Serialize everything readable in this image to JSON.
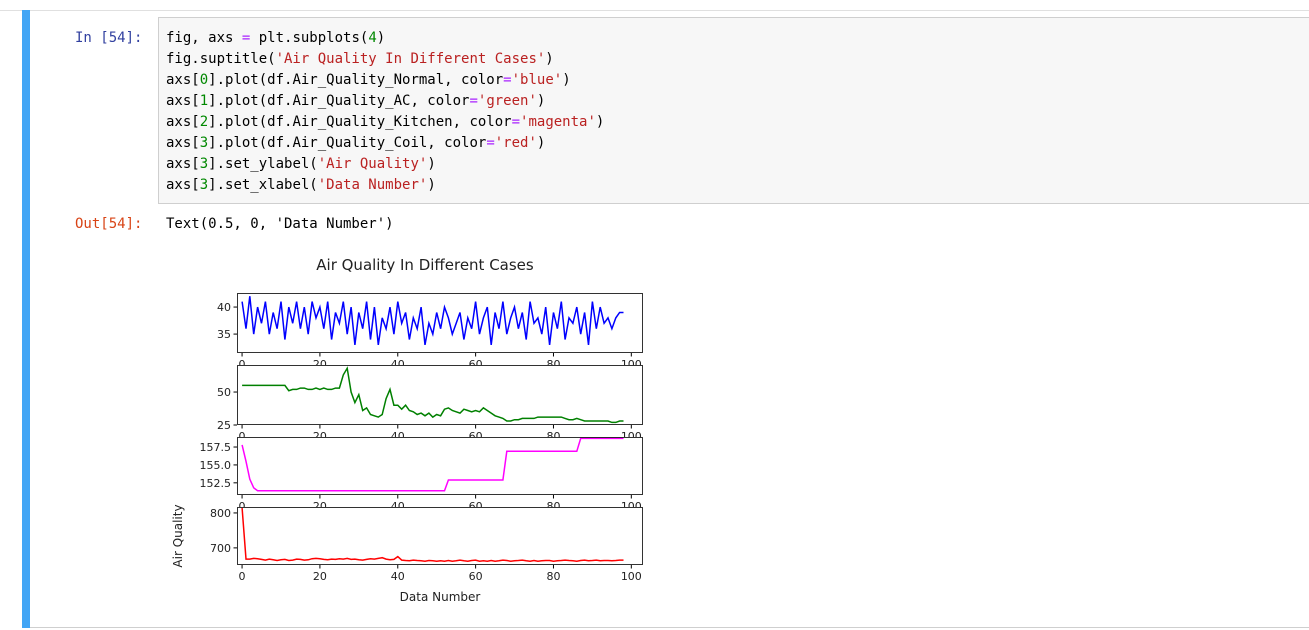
{
  "input": {
    "prompt": "In [54]:",
    "code": [
      "fig, axs = plt.subplots(4)",
      "fig.suptitle('Air Quality In Different Cases')",
      "axs[0].plot(df.Air_Quality_Normal, color='blue')",
      "axs[1].plot(df.Air_Quality_AC, color='green')",
      "axs[2].plot(df.Air_Quality_Kitchen, color='magenta')",
      "axs[3].plot(df.Air_Quality_Coil, color='red')",
      "axs[3].set_ylabel('Air Quality')",
      "axs[3].set_xlabel('Data Number')"
    ]
  },
  "output": {
    "prompt": "Out[54]:",
    "text": "Text(0.5, 0, 'Data Number')"
  },
  "chart_data": [
    {
      "type": "line",
      "title": "Air Quality In Different Cases",
      "color": "#0000ff",
      "xlim": [
        -1.3,
        103
      ],
      "xticks": [
        0,
        20,
        40,
        60,
        80,
        100
      ],
      "ylim": [
        31.5,
        42.6
      ],
      "yticks": [
        35,
        40
      ],
      "values": [
        41,
        36,
        42,
        35,
        40,
        37,
        41,
        35,
        39,
        36,
        41,
        34,
        40,
        37,
        41,
        36,
        40,
        35,
        41,
        38,
        40,
        36,
        41,
        34,
        39,
        37,
        41,
        35,
        40,
        33,
        39,
        36,
        41,
        34,
        40,
        33,
        38,
        36,
        40,
        35,
        41,
        37,
        39,
        34,
        38,
        36,
        40,
        33,
        37,
        35,
        39,
        36,
        40,
        38,
        35,
        37,
        39,
        34,
        38,
        36,
        41,
        35,
        38,
        40,
        33,
        39,
        36,
        41,
        35,
        38,
        40,
        36,
        39,
        34,
        41,
        37,
        38,
        35,
        40,
        33,
        39,
        36,
        41,
        34,
        38,
        37,
        40,
        35,
        39,
        33,
        41,
        36,
        40,
        37,
        38,
        36,
        38,
        39,
        39
      ]
    },
    {
      "type": "line",
      "color": "#008000",
      "xlim": [
        -1.3,
        103
      ],
      "xticks": [
        0,
        20,
        40,
        60,
        80,
        100
      ],
      "ylim": [
        25,
        70.5
      ],
      "yticks": [
        25,
        50
      ],
      "values": [
        55,
        55,
        55,
        55,
        55,
        55,
        55,
        55,
        55,
        55,
        55,
        55,
        51,
        52,
        52,
        53,
        53,
        52,
        52,
        53,
        52,
        53,
        52,
        52,
        53,
        53,
        63,
        68,
        50,
        42,
        48,
        36,
        38,
        33,
        32,
        31,
        33,
        45,
        52,
        40,
        40,
        37,
        40,
        36,
        35,
        33,
        34,
        32,
        34,
        31,
        33,
        32,
        37,
        38,
        36,
        35,
        34,
        37,
        36,
        35,
        36,
        35,
        38,
        36,
        34,
        32,
        31,
        30,
        28,
        28,
        29,
        29,
        30,
        30,
        30,
        30,
        31,
        31,
        31,
        31,
        31,
        31,
        31,
        30,
        29,
        29,
        30,
        29,
        28,
        28,
        28,
        28,
        28,
        28,
        28,
        27,
        27,
        28,
        28
      ]
    },
    {
      "type": "line",
      "color": "#ff00ff",
      "xlim": [
        -1.3,
        103
      ],
      "xticks": [
        0,
        20,
        40,
        60,
        80,
        100
      ],
      "ylim": [
        150.8,
        158.9
      ],
      "yticks": [
        {
          "value": 152.5,
          "label": "152.5"
        },
        {
          "value": 155,
          "label": "155.0"
        },
        {
          "value": 157.5,
          "label": "157.5"
        }
      ],
      "values": [
        157.8,
        155.5,
        153.0,
        151.8,
        151.4,
        151.4,
        151.4,
        151.4,
        151.4,
        151.4,
        151.4,
        151.4,
        151.4,
        151.4,
        151.4,
        151.4,
        151.4,
        151.4,
        151.4,
        151.4,
        151.4,
        151.4,
        151.4,
        151.4,
        151.4,
        151.4,
        151.4,
        151.4,
        151.4,
        151.4,
        151.4,
        151.4,
        151.4,
        151.4,
        151.4,
        151.4,
        151.4,
        151.4,
        151.4,
        151.4,
        151.4,
        151.4,
        151.4,
        151.4,
        151.4,
        151.4,
        151.4,
        151.4,
        151.4,
        151.4,
        151.4,
        151.4,
        151.4,
        152.9,
        152.9,
        152.9,
        152.9,
        152.9,
        152.9,
        152.9,
        152.9,
        152.9,
        152.9,
        152.9,
        152.9,
        152.9,
        152.9,
        152.9,
        156.9,
        156.9,
        156.9,
        156.9,
        156.9,
        156.9,
        156.9,
        156.9,
        156.9,
        156.9,
        156.9,
        156.9,
        156.9,
        156.9,
        156.9,
        156.9,
        156.9,
        156.9,
        156.9,
        158.7,
        158.7,
        158.7,
        158.7,
        158.7,
        158.7,
        158.7,
        158.7,
        158.7,
        158.7,
        158.7,
        158.7
      ]
    },
    {
      "type": "line",
      "color": "#ff0000",
      "ylabel": "Air Quality",
      "xlabel": "Data Number",
      "xlim": [
        -1.3,
        103
      ],
      "xticks": [
        0,
        20,
        40,
        60,
        80,
        100
      ],
      "ylim": [
        651,
        817
      ],
      "yticks": [
        700,
        800
      ],
      "values": [
        814,
        668,
        668,
        670,
        669,
        667,
        665,
        668,
        666,
        664,
        666,
        667,
        664,
        665,
        668,
        667,
        665,
        666,
        669,
        670,
        669,
        667,
        666,
        668,
        667,
        669,
        668,
        670,
        667,
        668,
        666,
        665,
        667,
        669,
        668,
        670,
        672,
        668,
        666,
        667,
        675,
        665,
        664,
        663,
        665,
        664,
        663,
        662,
        664,
        663,
        662,
        663,
        662,
        664,
        662,
        663,
        665,
        663,
        662,
        664,
        665,
        662,
        663,
        662,
        664,
        662,
        663,
        665,
        664,
        662,
        663,
        664,
        665,
        663,
        662,
        664,
        662,
        663,
        664,
        664,
        662,
        663,
        664,
        665,
        664,
        663,
        662,
        664,
        665,
        663,
        664,
        665,
        663,
        664,
        664,
        663,
        664,
        665,
        665
      ]
    }
  ]
}
